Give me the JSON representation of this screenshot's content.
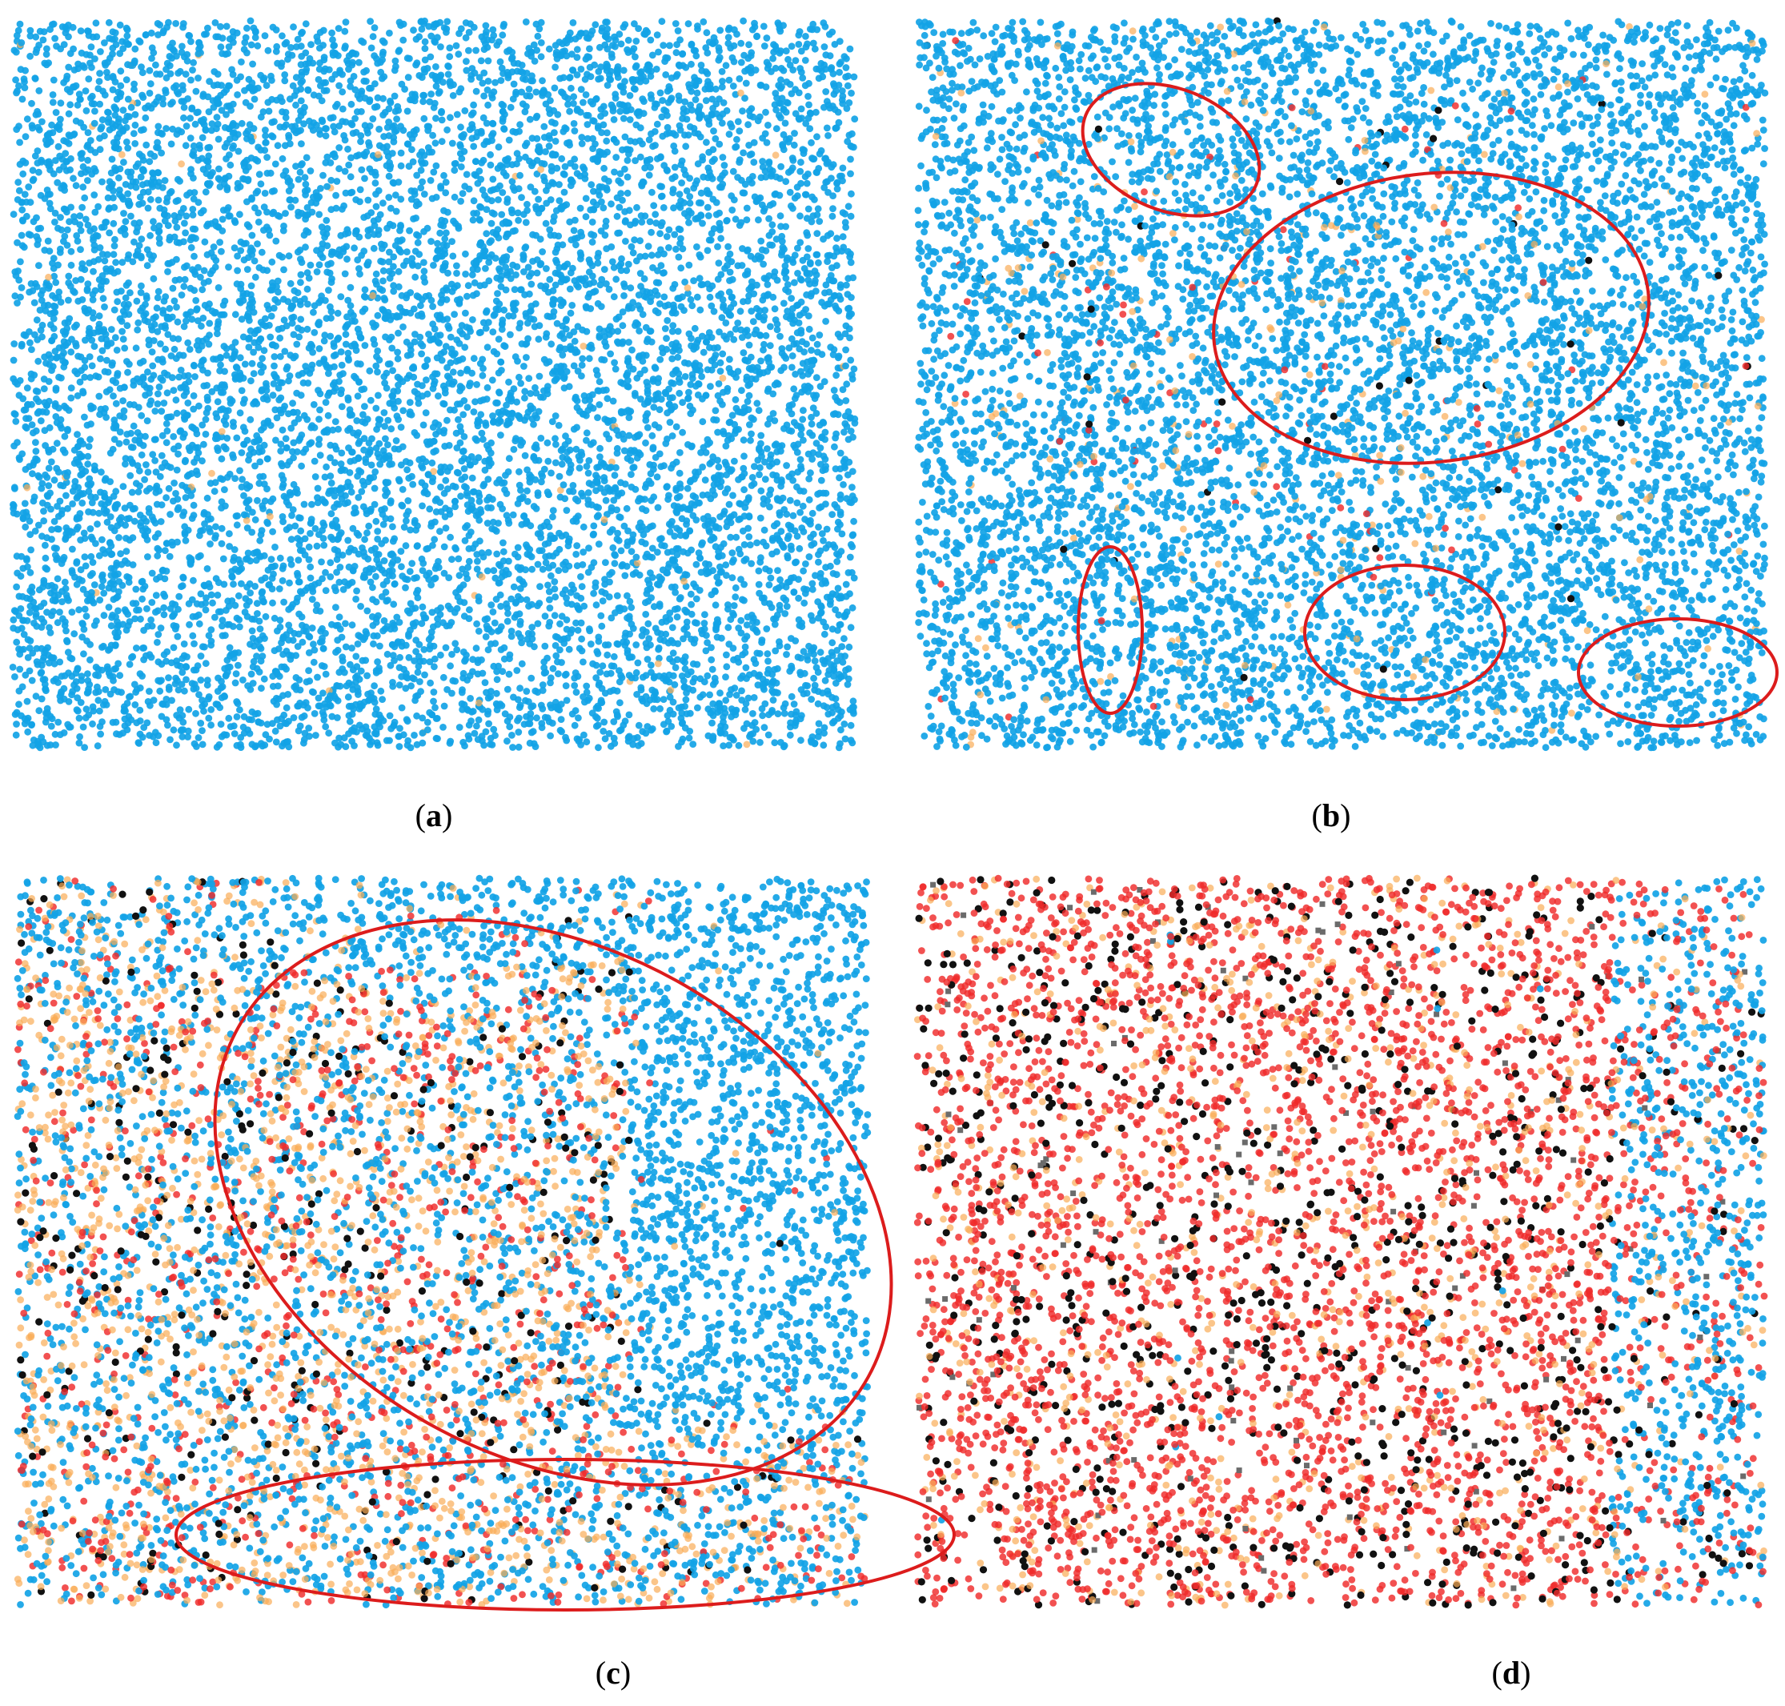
{
  "colors": {
    "blue": "#12a3e6",
    "orange": "#f9ad57",
    "red": "#ef2b2b",
    "black": "#111111",
    "gray": "#6b6b6b",
    "ellipse": "#dc1c1c"
  },
  "chart_data": [
    {
      "type": "scatter",
      "caption": {
        "open": "(",
        "letter": "a",
        "close": ")"
      },
      "grid": false,
      "legend": "none",
      "composition": {
        "blue": 0.995,
        "orange": 0.005,
        "red": 0.0,
        "black": 0.0,
        "gray": 0.0
      },
      "highlighted_regions": 0
    },
    {
      "type": "scatter",
      "caption": {
        "open": "(",
        "letter": "b",
        "close": ")"
      },
      "grid": false,
      "legend": "none",
      "composition": {
        "blue": 0.955,
        "orange": 0.03,
        "red": 0.008,
        "black": 0.004,
        "gray": 0.0
      },
      "highlighted_regions": 5
    },
    {
      "type": "scatter",
      "caption": {
        "open": "(",
        "letter": "c",
        "close": ")"
      },
      "grid": false,
      "legend": "none",
      "composition": {
        "blue": 0.58,
        "orange": 0.24,
        "red": 0.13,
        "black": 0.05,
        "gray": 0.0
      },
      "highlighted_regions": 2
    },
    {
      "type": "scatter",
      "caption": {
        "open": "(",
        "letter": "d",
        "close": ")"
      },
      "grid": false,
      "legend": "none",
      "composition": {
        "blue": 0.05,
        "orange": 0.16,
        "red": 0.62,
        "black": 0.15,
        "gray": 0.02
      },
      "highlighted_regions": 0
    }
  ]
}
